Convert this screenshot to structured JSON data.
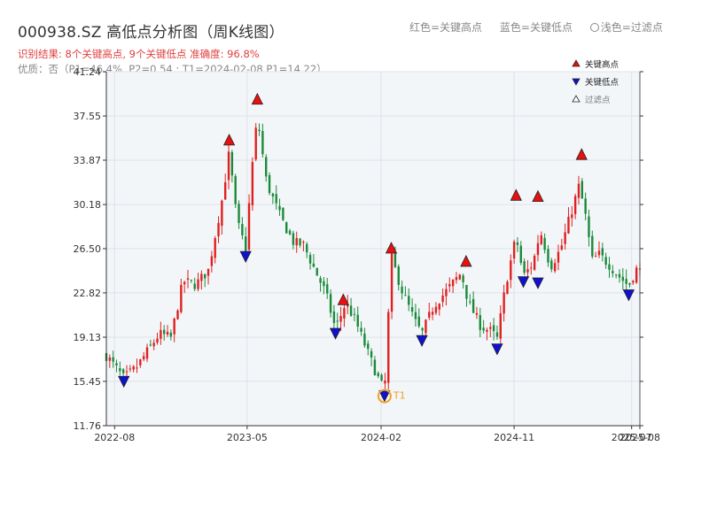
{
  "header": {
    "title": "000938.SZ 高低点分析图（周K线图）",
    "color_legend": [
      "红色=关键高点",
      "蓝色=关键低点",
      "浅色=过滤点"
    ],
    "result_text": "识别结果: 8个关键高点, 9个关键低点  准确度: 96.8%",
    "quality_text": "优质：否（P1=46.4%, P2=0.54 ; T1=2024-02-08 P1=14.22）"
  },
  "colors": {
    "up": "#e02020",
    "down": "#1a8a3a",
    "high_marker": "#e81010",
    "low_marker": "#1010d0",
    "t1": "#f0a020",
    "plot_bg": "#f3f6f9",
    "grid": "#dde2e8"
  },
  "chart_data": {
    "type": "candlestick",
    "title": "000938.SZ 高低点分析图（周K线图）",
    "ylim": [
      11.76,
      41.24
    ],
    "y_ticks": [
      11.76,
      15.45,
      19.13,
      22.82,
      26.5,
      30.18,
      33.87,
      37.55,
      41.24
    ],
    "x_range": [
      "2022-07-15",
      "2025-07-18"
    ],
    "x_ticks": [
      {
        "date": "2022-08-01",
        "label": "2022-08"
      },
      {
        "date": "2023-05-01",
        "label": "2023-05"
      },
      {
        "date": "2024-02-01",
        "label": "2024-02"
      },
      {
        "date": "2024-11-01",
        "label": "2024-11"
      },
      {
        "date": "2025-07-01",
        "label": "2025-07"
      },
      {
        "date": "2025-07-18",
        "label": "2025-08"
      }
    ],
    "legend": {
      "position": "top-right",
      "items": [
        {
          "label": "关键高点",
          "marker": "triangle-up",
          "color": "#e81010"
        },
        {
          "label": "关键低点",
          "marker": "triangle-down",
          "color": "#1010d0"
        },
        {
          "label": "过滤点",
          "marker": "triangle-up-hollow",
          "color": "#ffffff"
        }
      ]
    },
    "close_path": [
      [
        "2022-07-15",
        17.6
      ],
      [
        "2022-08-20",
        15.7
      ],
      [
        "2022-09-15",
        16.6
      ],
      [
        "2022-10-15",
        18.4
      ],
      [
        "2022-11-01",
        19.4
      ],
      [
        "2022-11-25",
        19.1
      ],
      [
        "2022-12-20",
        23.8
      ],
      [
        "2023-01-15",
        23.5
      ],
      [
        "2023-02-10",
        24.7
      ],
      [
        "2023-03-10",
        30.5
      ],
      [
        "2023-03-25",
        34.5
      ],
      [
        "2023-04-10",
        28.8
      ],
      [
        "2023-04-28",
        26.5
      ],
      [
        "2023-05-10",
        32.8
      ],
      [
        "2023-05-22",
        37.5
      ],
      [
        "2023-06-10",
        32.0
      ],
      [
        "2023-07-10",
        29.0
      ],
      [
        "2023-08-05",
        27.0
      ],
      [
        "2023-08-25",
        26.8
      ],
      [
        "2023-09-20",
        24.5
      ],
      [
        "2023-10-10",
        22.8
      ],
      [
        "2023-10-30",
        19.8
      ],
      [
        "2023-11-20",
        22.0
      ],
      [
        "2023-12-10",
        20.5
      ],
      [
        "2024-01-05",
        17.8
      ],
      [
        "2024-01-25",
        15.8
      ],
      [
        "2024-02-08",
        14.6
      ],
      [
        "2024-02-22",
        25.8
      ],
      [
        "2024-03-15",
        23.0
      ],
      [
        "2024-04-10",
        20.5
      ],
      [
        "2024-04-25",
        19.4
      ],
      [
        "2024-05-20",
        21.8
      ],
      [
        "2024-06-15",
        23.0
      ],
      [
        "2024-07-15",
        24.5
      ],
      [
        "2024-07-30",
        22.0
      ],
      [
        "2024-08-25",
        20.0
      ],
      [
        "2024-09-15",
        19.6
      ],
      [
        "2024-09-27",
        19.0
      ],
      [
        "2024-10-15",
        23.6
      ],
      [
        "2024-11-05",
        27.5
      ],
      [
        "2024-11-20",
        24.2
      ],
      [
        "2024-12-10",
        25.3
      ],
      [
        "2024-12-25",
        28.0
      ],
      [
        "2025-01-15",
        25.0
      ],
      [
        "2025-02-05",
        26.5
      ],
      [
        "2025-02-25",
        29.3
      ],
      [
        "2025-03-15",
        31.8
      ],
      [
        "2025-03-30",
        28.8
      ],
      [
        "2025-04-10",
        25.5
      ],
      [
        "2025-04-25",
        26.0
      ],
      [
        "2025-05-15",
        25.2
      ],
      [
        "2025-06-05",
        24.2
      ],
      [
        "2025-06-25",
        23.4
      ],
      [
        "2025-07-10",
        24.8
      ],
      [
        "2025-07-18",
        24.6
      ]
    ],
    "key_highs": [
      {
        "date": "2023-03-25",
        "price": 35.5
      },
      {
        "date": "2023-05-22",
        "price": 38.9
      },
      {
        "date": "2023-11-15",
        "price": 22.2
      },
      {
        "date": "2024-02-22",
        "price": 26.5
      },
      {
        "date": "2024-07-25",
        "price": 25.4
      },
      {
        "date": "2024-11-05",
        "price": 30.9
      },
      {
        "date": "2024-12-20",
        "price": 30.8
      },
      {
        "date": "2025-03-20",
        "price": 34.3
      }
    ],
    "key_lows": [
      {
        "date": "2022-08-20",
        "price": 15.5
      },
      {
        "date": "2023-04-28",
        "price": 25.9
      },
      {
        "date": "2023-10-30",
        "price": 19.5
      },
      {
        "date": "2024-02-08",
        "price": 14.3
      },
      {
        "date": "2024-04-25",
        "price": 18.9
      },
      {
        "date": "2024-09-27",
        "price": 18.2
      },
      {
        "date": "2024-11-20",
        "price": 23.8
      },
      {
        "date": "2024-12-20",
        "price": 23.7
      },
      {
        "date": "2025-06-25",
        "price": 22.7
      }
    ],
    "t1": {
      "date": "2024-02-08",
      "price": 14.22,
      "label": "T1"
    }
  }
}
